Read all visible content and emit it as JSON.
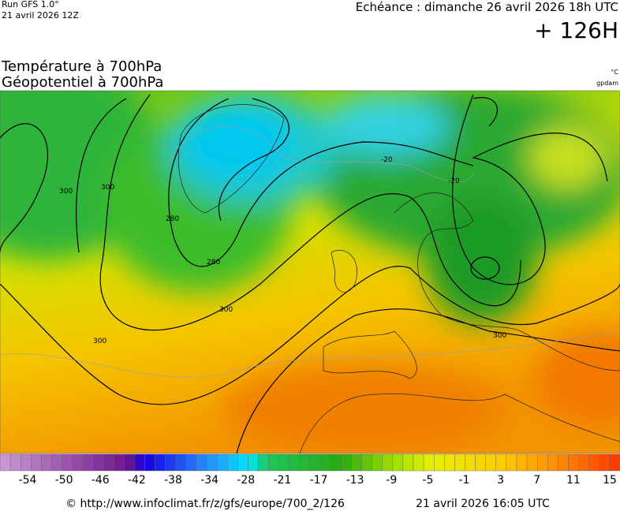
{
  "header": {
    "run": "Run GFS 1.0°",
    "run_date": "21 avril 2026 12Z",
    "valid": "Echéance : dimanche 26 avril 2026 18h UTC",
    "lead": "+ 126H"
  },
  "titles": [
    "Température à 700hPa",
    "Géopotentiel à 700hPa"
  ],
  "units": [
    "°C",
    "gpdam"
  ],
  "contour_labels": [
    300,
    300,
    280,
    280,
    300,
    300,
    300,
    -20,
    -20
  ],
  "colorbar": {
    "labels": [
      -54,
      -50,
      -46,
      -42,
      -38,
      -34,
      -28,
      -21,
      -17,
      -13,
      -9,
      -5,
      -1,
      3,
      7,
      11,
      15
    ]
  },
  "footer": {
    "source": "© http://www.infoclimat.fr/z/gfs/europe/700_2/126",
    "generated": "21 avril 2026 16:05 UTC"
  }
}
